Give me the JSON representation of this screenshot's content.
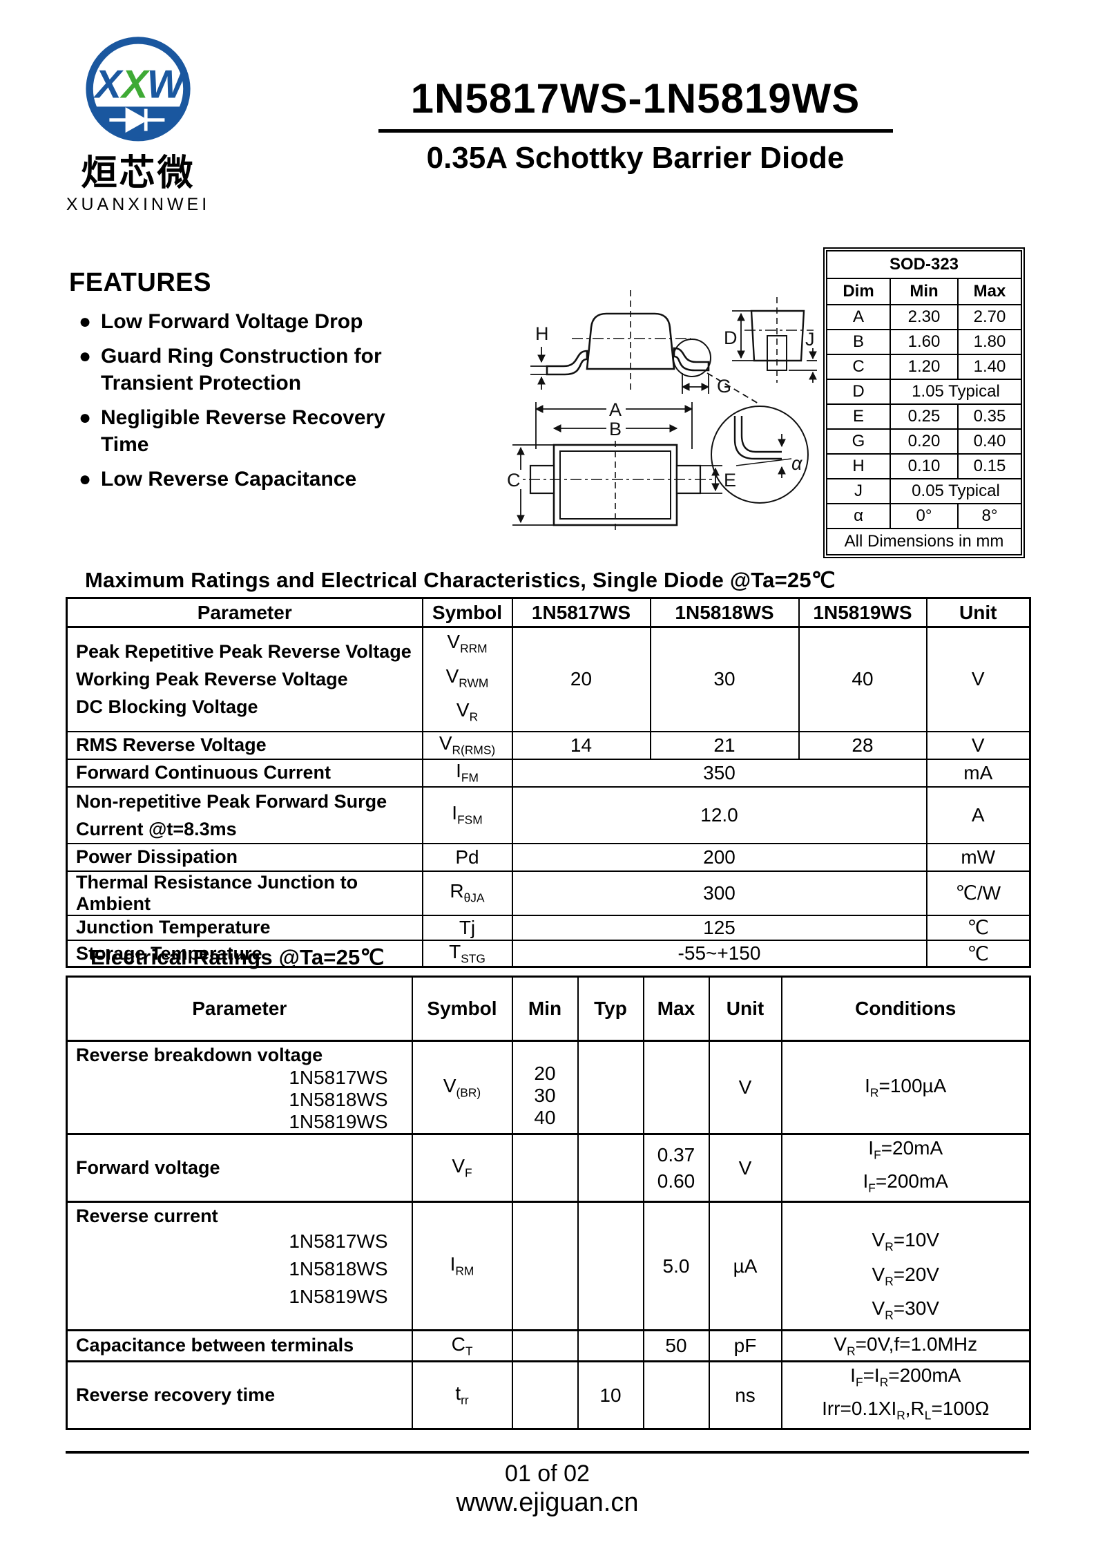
{
  "brand": {
    "letter_x1": "X",
    "letter_x2": "X",
    "letter_w": "W",
    "chinese": "烜芯微",
    "latin": "XUANXINWEI",
    "blue": "#1a579f",
    "green": "#3faa35"
  },
  "header": {
    "title": "1N5817WS-1N5819WS",
    "subtitle": "0.35A Schottky Barrier Diode"
  },
  "features": {
    "heading": "FEATURES",
    "items": [
      "Low Forward Voltage Drop",
      "Guard Ring Construction for Transient Protection",
      "Negligible Reverse Recovery Time",
      "Low Reverse Capacitance"
    ]
  },
  "drawing": {
    "labels": {
      "a": "A",
      "b": "B",
      "c": "C",
      "d": "D",
      "e": "E",
      "g": "G",
      "h": "H",
      "j": "J",
      "alpha": "α"
    }
  },
  "package_table": {
    "title": "SOD-323",
    "headers": [
      "Dim",
      "Min",
      "Max"
    ],
    "rows": [
      {
        "dim": "A",
        "min": "2.30",
        "max": "2.70"
      },
      {
        "dim": "B",
        "min": "1.60",
        "max": "1.80"
      },
      {
        "dim": "C",
        "min": "1.20",
        "max": "1.40"
      },
      {
        "dim": "D",
        "span": "1.05 Typical"
      },
      {
        "dim": "E",
        "min": "0.25",
        "max": "0.35"
      },
      {
        "dim": "G",
        "min": "0.20",
        "max": "0.40"
      },
      {
        "dim": "H",
        "min": "0.10",
        "max": "0.15"
      },
      {
        "dim": "J",
        "span": "0.05 Typical"
      },
      {
        "dim": "α",
        "min": "0°",
        "max": "8°"
      }
    ],
    "note": "All Dimensions in mm"
  },
  "max_ratings": {
    "heading": "Maximum Ratings and Electrical Characteristics, Single Diode @Ta=25℃",
    "headers": [
      "Parameter",
      "Symbol",
      "1N5817WS",
      "1N5818WS",
      "1N5819WS",
      "Unit"
    ],
    "row_voltages": {
      "param_lines": [
        "Peak Repetitive Peak Reverse Voltage",
        "Working Peak Reverse Voltage",
        "DC Blocking Voltage"
      ],
      "symbols": [
        "V_{RRM}",
        "V_{RWM}",
        "V_{R}"
      ],
      "v17": "20",
      "v18": "30",
      "v19": "40",
      "unit": "V"
    },
    "row_rms": {
      "param": "RMS Reverse Voltage",
      "symbol": "V_{R(RMS)}",
      "v17": "14",
      "v18": "21",
      "v19": "28",
      "unit": "V"
    },
    "row_ifm": {
      "param": "Forward Continuous Current",
      "symbol": "I_{FM}",
      "value": "350",
      "unit": "mA"
    },
    "row_ifsm": {
      "param_lines": [
        "Non-repetitive Peak Forward Surge",
        "Current @t=8.3ms"
      ],
      "symbol": "I_{FSM}",
      "value": "12.0",
      "unit": "A"
    },
    "row_pd": {
      "param": "Power Dissipation",
      "symbol": "Pd",
      "value": "200",
      "unit": "mW"
    },
    "row_rth": {
      "param": "Thermal Resistance Junction to Ambient",
      "symbol": "R_{θJA}",
      "value": "300",
      "unit": "℃/W"
    },
    "row_tj": {
      "param": "Junction Temperature",
      "symbol": "Tj",
      "value": "125",
      "unit": "℃"
    },
    "row_tstg": {
      "param": "Storage Temperature",
      "symbol": "T_{STG}",
      "value": "-55~+150",
      "unit": "℃"
    }
  },
  "electrical": {
    "heading": "Electrical Ratings @Ta=25℃",
    "headers": [
      "Parameter",
      "Symbol",
      "Min",
      "Typ",
      "Max",
      "Unit",
      "Conditions"
    ],
    "row_vbr": {
      "param": "Reverse breakdown voltage",
      "parts": [
        "1N5817WS",
        "1N5818WS",
        "1N5819WS"
      ],
      "symbol": "V_{(BR)}",
      "min_lines": [
        "20",
        "30",
        "40"
      ],
      "unit": "V",
      "cond": "I_{R}=100µA"
    },
    "row_vf": {
      "param": "Forward voltage",
      "symbol": "V_{F}",
      "max_lines": [
        "0.37",
        "0.60"
      ],
      "unit": "V",
      "cond_lines": [
        "I_{F}=20mA",
        "I_{F}=200mA"
      ]
    },
    "row_irm": {
      "param": "Reverse current",
      "parts": [
        "1N5817WS",
        "1N5818WS",
        "1N5819WS"
      ],
      "symbol": "I_{RM}",
      "max": "5.0",
      "unit": "µA",
      "cond_lines": [
        "V_{R}=10V",
        "V_{R}=20V",
        "V_{R}=30V"
      ]
    },
    "row_ct": {
      "param": "Capacitance between terminals",
      "symbol": "C_{T}",
      "max": "50",
      "unit": "pF",
      "cond": "V_{R}=0V,f=1.0MHz"
    },
    "row_trr": {
      "param": "Reverse recovery time",
      "symbol": "t_{rr}",
      "typ": "10",
      "unit": "ns",
      "cond_lines": [
        "I_{F}=I_{R}=200mA",
        "Irr=0.1XI_{R},R_{L}=100Ω"
      ]
    }
  },
  "footer": {
    "page": "01 of 02",
    "site": "www.ejiguan.cn"
  }
}
